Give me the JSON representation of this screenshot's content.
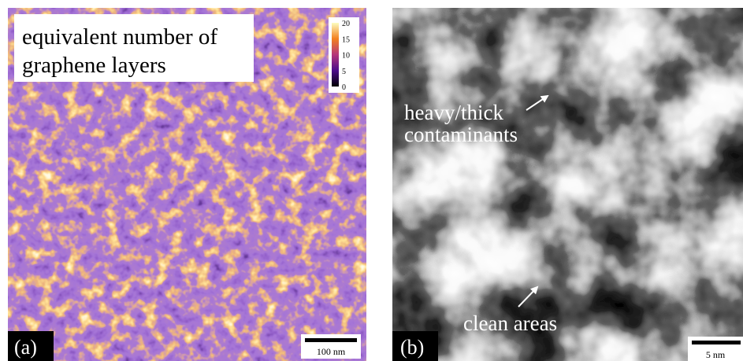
{
  "panel_a": {
    "label": "(a)",
    "annotation": [
      "equivalent number of",
      "graphene layers"
    ],
    "colorbar_ticks": [
      20,
      15,
      10,
      5,
      0
    ],
    "scale_bar": "100 nm"
  },
  "panel_b": {
    "label": "(b)",
    "annotations": {
      "heavy": [
        "heavy/thick",
        "contaminants"
      ],
      "clean": "clean areas"
    },
    "scale_bar": "5 nm"
  }
}
